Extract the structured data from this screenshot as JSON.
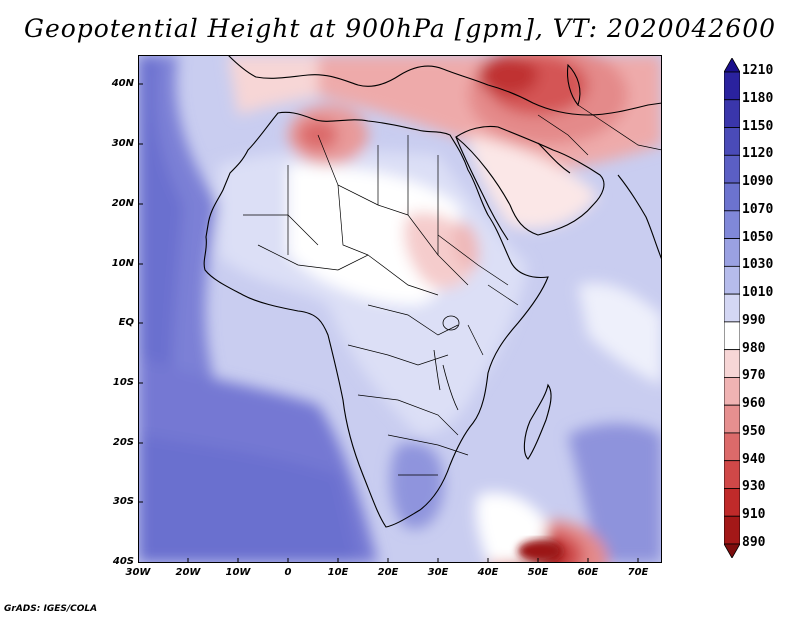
{
  "title": "Geopotential Height at 900hPa [gpm], VT: 2020042600",
  "credit": "GrADS: IGES/COLA",
  "map": {
    "variable": "Geopotential Height",
    "level": "900hPa",
    "units": "gpm",
    "valid_time": "2020042600",
    "lon_range": [
      -30,
      75
    ],
    "lat_range": [
      -40,
      45
    ],
    "lat_labels": [
      "40N",
      "30N",
      "20N",
      "10N",
      "EQ",
      "10S",
      "20S",
      "30S",
      "40S"
    ],
    "lon_labels": [
      "30W",
      "20W",
      "10W",
      "0",
      "10E",
      "20E",
      "30E",
      "40E",
      "50E",
      "60E",
      "70E"
    ],
    "fields": {
      "low_regions": [
        "Middle East / Iran",
        "Algeria",
        "Mediterranean",
        "Sudan / Ethiopia",
        "South Atlantic-Indian Ocean 45E-60E 40S"
      ],
      "high_regions": [
        "South Atlantic",
        "North Atlantic off West Africa",
        "Southern Indian Ocean"
      ]
    }
  },
  "colorbar": {
    "labels": [
      "1210",
      "1180",
      "1150",
      "1120",
      "1090",
      "1070",
      "1050",
      "1030",
      "1010",
      "990",
      "980",
      "970",
      "960",
      "950",
      "940",
      "930",
      "910",
      "890"
    ],
    "colors": [
      "#1a0f8c",
      "#2a229e",
      "#3a36ab",
      "#4a4bb8",
      "#5b5fc4",
      "#6c73cf",
      "#8088d9",
      "#9aa1e2",
      "#b6bcec",
      "#d4d7f4",
      "#ffffff",
      "#f7d6d6",
      "#f0b3b3",
      "#e68f8f",
      "#dc6a6a",
      "#d04848",
      "#c02a2a",
      "#a31818",
      "#7d0d0d"
    ]
  }
}
